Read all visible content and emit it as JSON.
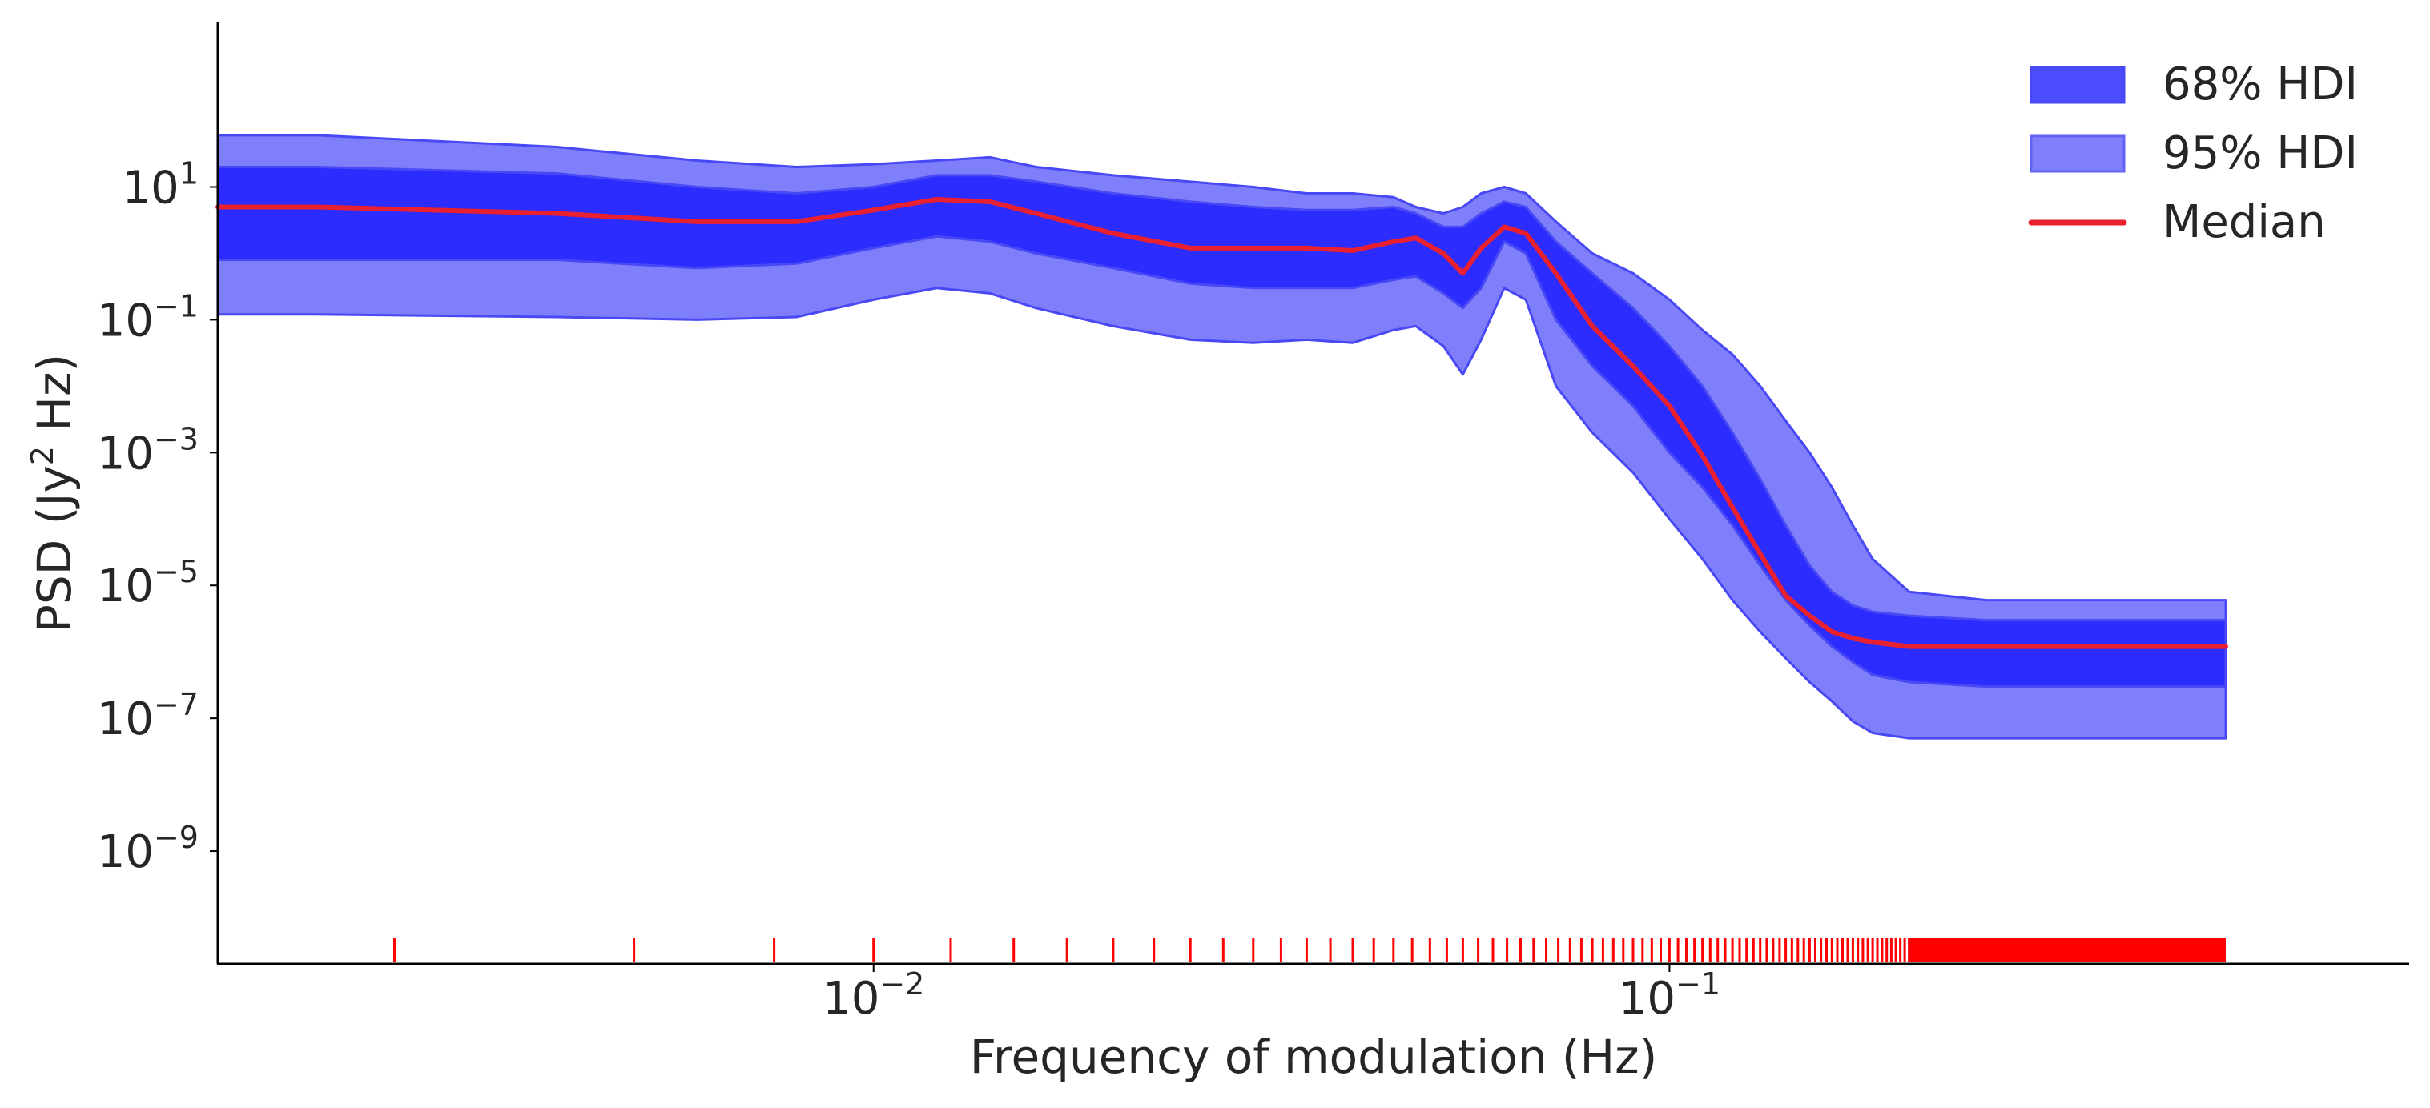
{
  "chart_data": {
    "type": "area",
    "title": "",
    "xlabel": "Frequency of modulation (Hz)",
    "ylabel": "PSD (Jy",
    "ylabel_superscript": "2",
    "ylabel_suffix": " Hz)",
    "xscale": "log",
    "yscale": "log",
    "xlim": [
      0.0015,
      0.85
    ],
    "ylim": [
      2e-11,
      3000
    ],
    "x_ticks": [
      {
        "value": 0.01,
        "base": "10",
        "exp": "−2"
      },
      {
        "value": 0.1,
        "base": "10",
        "exp": "−1"
      }
    ],
    "y_ticks": [
      {
        "value": 10,
        "base": "10",
        "exp": "1"
      },
      {
        "value": 0.1,
        "base": "10",
        "exp": "−1"
      },
      {
        "value": 0.001,
        "base": "10",
        "exp": "−3"
      },
      {
        "value": 1e-05,
        "base": "10",
        "exp": "−5"
      },
      {
        "value": 1e-07,
        "base": "10",
        "exp": "−7"
      },
      {
        "value": 1e-09,
        "base": "10",
        "exp": "−9"
      }
    ],
    "grid": false,
    "legend_position": "top-right",
    "legend": [
      {
        "label": "68% HDI",
        "kind": "band68"
      },
      {
        "label": "95% HDI",
        "kind": "band95"
      },
      {
        "label": "Median",
        "kind": "line"
      }
    ],
    "colors": {
      "band68": "#1a1aff",
      "band95": "#7f7ffb",
      "band_edge": "#4848f5",
      "median": "#e8202f",
      "rug": "#ff0000",
      "axis": "#000000",
      "text": "#262626"
    },
    "series": [
      {
        "name": "95% HDI",
        "x": [
          0.0015,
          0.002,
          0.004,
          0.006,
          0.008,
          0.01,
          0.012,
          0.014,
          0.016,
          0.02,
          0.025,
          0.03,
          0.035,
          0.04,
          0.045,
          0.048,
          0.052,
          0.055,
          0.058,
          0.062,
          0.066,
          0.072,
          0.08,
          0.09,
          0.1,
          0.11,
          0.12,
          0.13,
          0.14,
          0.15,
          0.16,
          0.17,
          0.18,
          0.2,
          0.25,
          0.3,
          0.35,
          0.4,
          0.45,
          0.5
        ],
        "lower": [
          0.12,
          0.12,
          0.11,
          0.1,
          0.11,
          0.2,
          0.3,
          0.25,
          0.15,
          0.08,
          0.05,
          0.045,
          0.05,
          0.045,
          0.07,
          0.08,
          0.04,
          0.015,
          0.05,
          0.3,
          0.2,
          0.01,
          0.002,
          0.0005,
          0.0001,
          2.5e-05,
          6e-06,
          2e-06,
          8e-07,
          3.5e-07,
          1.8e-07,
          9e-08,
          6e-08,
          5e-08,
          5e-08,
          5e-08,
          5e-08,
          5e-08,
          5e-08,
          5e-08
        ],
        "upper": [
          60,
          60,
          40,
          25,
          20,
          22,
          25,
          28,
          20,
          15,
          12,
          10,
          8,
          8,
          7,
          5,
          4,
          5,
          8,
          10,
          8,
          3,
          1,
          0.5,
          0.2,
          0.07,
          0.03,
          0.01,
          0.003,
          0.001,
          0.0003,
          8e-05,
          2.5e-05,
          8e-06,
          6e-06,
          6e-06,
          6e-06,
          6e-06,
          6e-06,
          6e-06
        ]
      },
      {
        "name": "68% HDI",
        "x": [
          0.0015,
          0.002,
          0.004,
          0.006,
          0.008,
          0.01,
          0.012,
          0.014,
          0.016,
          0.02,
          0.025,
          0.03,
          0.035,
          0.04,
          0.045,
          0.048,
          0.052,
          0.055,
          0.058,
          0.062,
          0.066,
          0.072,
          0.08,
          0.09,
          0.1,
          0.11,
          0.12,
          0.13,
          0.14,
          0.15,
          0.16,
          0.17,
          0.18,
          0.2,
          0.25,
          0.3,
          0.35,
          0.4,
          0.45,
          0.5
        ],
        "lower": [
          0.8,
          0.8,
          0.8,
          0.6,
          0.7,
          1.2,
          1.8,
          1.5,
          1.0,
          0.6,
          0.35,
          0.3,
          0.3,
          0.3,
          0.4,
          0.45,
          0.25,
          0.15,
          0.3,
          1.5,
          1.0,
          0.1,
          0.02,
          0.005,
          0.001,
          0.0003,
          8e-05,
          2e-05,
          6e-06,
          2.5e-06,
          1.2e-06,
          7e-07,
          4.5e-07,
          3.5e-07,
          3e-07,
          3e-07,
          3e-07,
          3e-07,
          3e-07,
          3e-07
        ],
        "upper": [
          20,
          20,
          16,
          10,
          8,
          10,
          15,
          15,
          12,
          8,
          6,
          5,
          4.5,
          4.5,
          5,
          4,
          2.5,
          2.5,
          4,
          6,
          5,
          1.5,
          0.5,
          0.15,
          0.04,
          0.01,
          0.002,
          0.0004,
          8e-05,
          2e-05,
          8e-06,
          5e-06,
          4e-06,
          3.5e-06,
          3e-06,
          3e-06,
          3e-06,
          3e-06,
          3e-06,
          3e-06
        ]
      },
      {
        "name": "Median",
        "x": [
          0.0015,
          0.002,
          0.004,
          0.006,
          0.008,
          0.01,
          0.012,
          0.014,
          0.016,
          0.02,
          0.025,
          0.03,
          0.035,
          0.04,
          0.045,
          0.048,
          0.052,
          0.055,
          0.058,
          0.062,
          0.066,
          0.072,
          0.08,
          0.09,
          0.1,
          0.11,
          0.12,
          0.13,
          0.14,
          0.15,
          0.16,
          0.17,
          0.18,
          0.2,
          0.25,
          0.3,
          0.35,
          0.4,
          0.45,
          0.5
        ],
        "values": [
          5,
          5,
          4,
          3,
          3,
          4.5,
          6.5,
          6,
          4,
          2,
          1.2,
          1.2,
          1.2,
          1.1,
          1.5,
          1.7,
          1.0,
          0.5,
          1.2,
          2.5,
          2.0,
          0.5,
          0.08,
          0.02,
          0.005,
          0.0009,
          0.00015,
          3e-05,
          7e-06,
          3.5e-06,
          2e-06,
          1.6e-06,
          1.4e-06,
          1.2e-06,
          1.2e-06,
          1.2e-06,
          1.2e-06,
          1.2e-06,
          1.2e-06,
          1.2e-06
        ]
      }
    ],
    "rug": {
      "sample_frequencies": [
        0.0025,
        0.005,
        0.0075,
        0.01,
        0.0125,
        0.015,
        0.0175,
        0.02,
        0.0225,
        0.025,
        0.0275,
        0.03,
        0.0325,
        0.035,
        0.0375,
        0.04,
        0.0425,
        0.045,
        0.0475,
        0.05,
        0.0525,
        0.055,
        0.0575,
        0.06,
        0.0625,
        0.065,
        0.0675,
        0.07,
        0.0725,
        0.075,
        0.0775,
        0.08,
        0.0825,
        0.085,
        0.0875,
        0.09,
        0.0925,
        0.095,
        0.0975,
        0.1,
        0.1025,
        0.105,
        0.1075,
        0.11,
        0.1125,
        0.115,
        0.1175,
        0.12,
        0.1225,
        0.125,
        0.1275,
        0.13,
        0.1325,
        0.135,
        0.1375,
        0.14,
        0.1425,
        0.145,
        0.1475,
        0.15,
        0.1525,
        0.155,
        0.1575,
        0.16,
        0.1625,
        0.165,
        0.1675,
        0.17,
        0.1725,
        0.175,
        0.1775,
        0.18,
        0.1825,
        0.185,
        0.1875,
        0.19,
        0.1925,
        0.195,
        0.1975,
        0.2,
        0.2025,
        0.205,
        0.2075,
        0.21,
        0.2125,
        0.215,
        0.2175,
        0.22,
        0.2225,
        0.225,
        0.2275,
        0.23,
        0.2325,
        0.235,
        0.2375,
        0.24,
        0.2425,
        0.245,
        0.2475,
        0.25
      ],
      "dense_band": [
        0.2,
        0.5
      ]
    }
  }
}
